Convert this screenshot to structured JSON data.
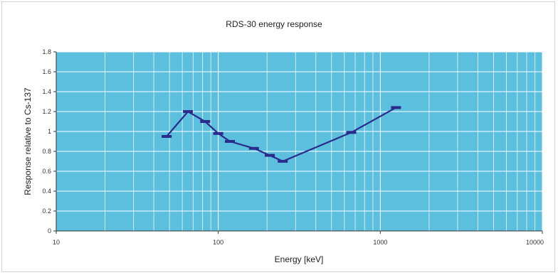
{
  "chart_data": {
    "type": "line",
    "title": "RDS-30 energy response",
    "xlabel": "Energy [keV]",
    "ylabel": "Response relative to Cs-137",
    "x_scale": "log",
    "xlim": [
      10,
      10000
    ],
    "ylim": [
      0,
      1.8
    ],
    "x_ticks": [
      10,
      100,
      1000,
      10000
    ],
    "x_tick_labels": [
      "10",
      "100",
      "1000",
      "10000"
    ],
    "y_ticks": [
      0,
      0.2,
      0.4,
      0.6,
      0.8,
      1,
      1.2,
      1.4,
      1.6,
      1.8
    ],
    "y_tick_labels": [
      "0",
      "0.2",
      "0.4",
      "0.6",
      "0.8",
      "1",
      "1.2",
      "1.4",
      "1.6",
      "1.8"
    ],
    "grid": true,
    "legend": "none",
    "colors": {
      "plot_background": "#5bbfdd",
      "series": "#2b2b8c",
      "grid": "#ffffff"
    },
    "series": [
      {
        "x": [
          48,
          65,
          83,
          100,
          118,
          166,
          208,
          250,
          662,
          1250
        ],
        "y": [
          0.95,
          1.2,
          1.1,
          0.98,
          0.9,
          0.83,
          0.76,
          0.7,
          0.99,
          1.24
        ]
      }
    ]
  }
}
